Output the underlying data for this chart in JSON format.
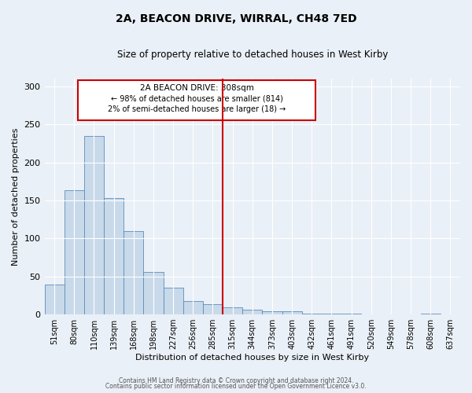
{
  "title": "2A, BEACON DRIVE, WIRRAL, CH48 7ED",
  "subtitle": "Size of property relative to detached houses in West Kirby",
  "xlabel": "Distribution of detached houses by size in West Kirby",
  "ylabel": "Number of detached properties",
  "bin_labels": [
    "51sqm",
    "80sqm",
    "110sqm",
    "139sqm",
    "168sqm",
    "198sqm",
    "227sqm",
    "256sqm",
    "285sqm",
    "315sqm",
    "344sqm",
    "373sqm",
    "403sqm",
    "432sqm",
    "461sqm",
    "491sqm",
    "520sqm",
    "549sqm",
    "578sqm",
    "608sqm",
    "637sqm"
  ],
  "bar_heights": [
    39,
    163,
    235,
    153,
    110,
    56,
    35,
    18,
    14,
    9,
    6,
    4,
    4,
    1,
    1,
    1,
    0,
    0,
    0,
    1,
    0
  ],
  "bar_color": "#c8d9ea",
  "bar_edge_color": "#5b8db8",
  "marker_bin_index": 9,
  "marker_color": "#cc0000",
  "annotation_title": "2A BEACON DRIVE: 308sqm",
  "annotation_line1": "← 98% of detached houses are smaller (814)",
  "annotation_line2": "2% of semi-detached houses are larger (18) →",
  "annotation_box_color": "#ffffff",
  "annotation_box_edge": "#cc0000",
  "ylim": [
    0,
    310
  ],
  "yticks": [
    0,
    50,
    100,
    150,
    200,
    250,
    300
  ],
  "footer1": "Contains HM Land Registry data © Crown copyright and database right 2024.",
  "footer2": "Contains public sector information licensed under the Open Government Licence v3.0.",
  "bg_color": "#eaf0f7",
  "plot_bg_color": "#eaf0f7"
}
